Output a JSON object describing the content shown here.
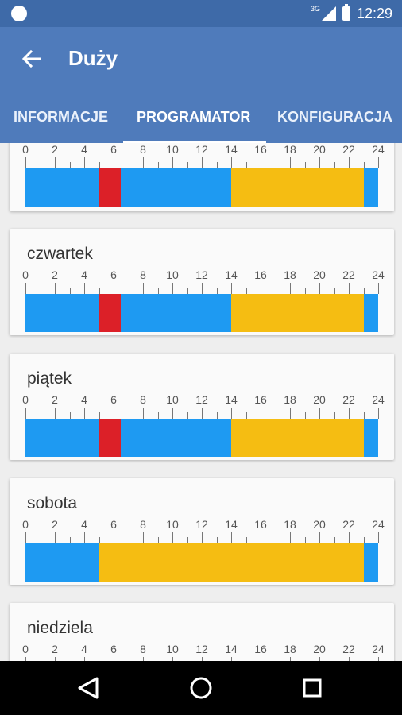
{
  "status_bar": {
    "network": "3G",
    "time": "12:29"
  },
  "app_bar": {
    "title": "Duży",
    "tabs": [
      {
        "label": "INFORMACJE"
      },
      {
        "label": "PROGRAMATOR"
      },
      {
        "label": "KONFIGURACJA"
      }
    ],
    "active_tab": 1
  },
  "colors": {
    "blue": "#1e9af2",
    "red": "#dc2028",
    "yellow": "#f5bd12"
  },
  "scale_labels": [
    "0",
    "2",
    "4",
    "6",
    "8",
    "10",
    "12",
    "14",
    "16",
    "18",
    "20",
    "22",
    "24"
  ],
  "days": [
    {
      "name": "",
      "segments": [
        {
          "from": 0,
          "to": 5,
          "color": "blue"
        },
        {
          "from": 5,
          "to": 6.5,
          "color": "red"
        },
        {
          "from": 6.5,
          "to": 14,
          "color": "blue"
        },
        {
          "from": 14,
          "to": 23,
          "color": "yellow"
        },
        {
          "from": 23,
          "to": 24,
          "color": "blue"
        }
      ]
    },
    {
      "name": "czwartek",
      "segments": [
        {
          "from": 0,
          "to": 5,
          "color": "blue"
        },
        {
          "from": 5,
          "to": 6.5,
          "color": "red"
        },
        {
          "from": 6.5,
          "to": 14,
          "color": "blue"
        },
        {
          "from": 14,
          "to": 23,
          "color": "yellow"
        },
        {
          "from": 23,
          "to": 24,
          "color": "blue"
        }
      ]
    },
    {
      "name": "piątek",
      "segments": [
        {
          "from": 0,
          "to": 5,
          "color": "blue"
        },
        {
          "from": 5,
          "to": 6.5,
          "color": "red"
        },
        {
          "from": 6.5,
          "to": 14,
          "color": "blue"
        },
        {
          "from": 14,
          "to": 23,
          "color": "yellow"
        },
        {
          "from": 23,
          "to": 24,
          "color": "blue"
        }
      ]
    },
    {
      "name": "sobota",
      "segments": [
        {
          "from": 0,
          "to": 5,
          "color": "blue"
        },
        {
          "from": 5,
          "to": 23,
          "color": "yellow"
        },
        {
          "from": 23,
          "to": 24,
          "color": "blue"
        }
      ]
    },
    {
      "name": "niedziela",
      "segments": []
    }
  ],
  "icons": {
    "back": "arrow-left-icon",
    "nav_back": "triangle-back-icon",
    "nav_home": "circle-home-icon",
    "nav_recents": "square-recents-icon"
  }
}
